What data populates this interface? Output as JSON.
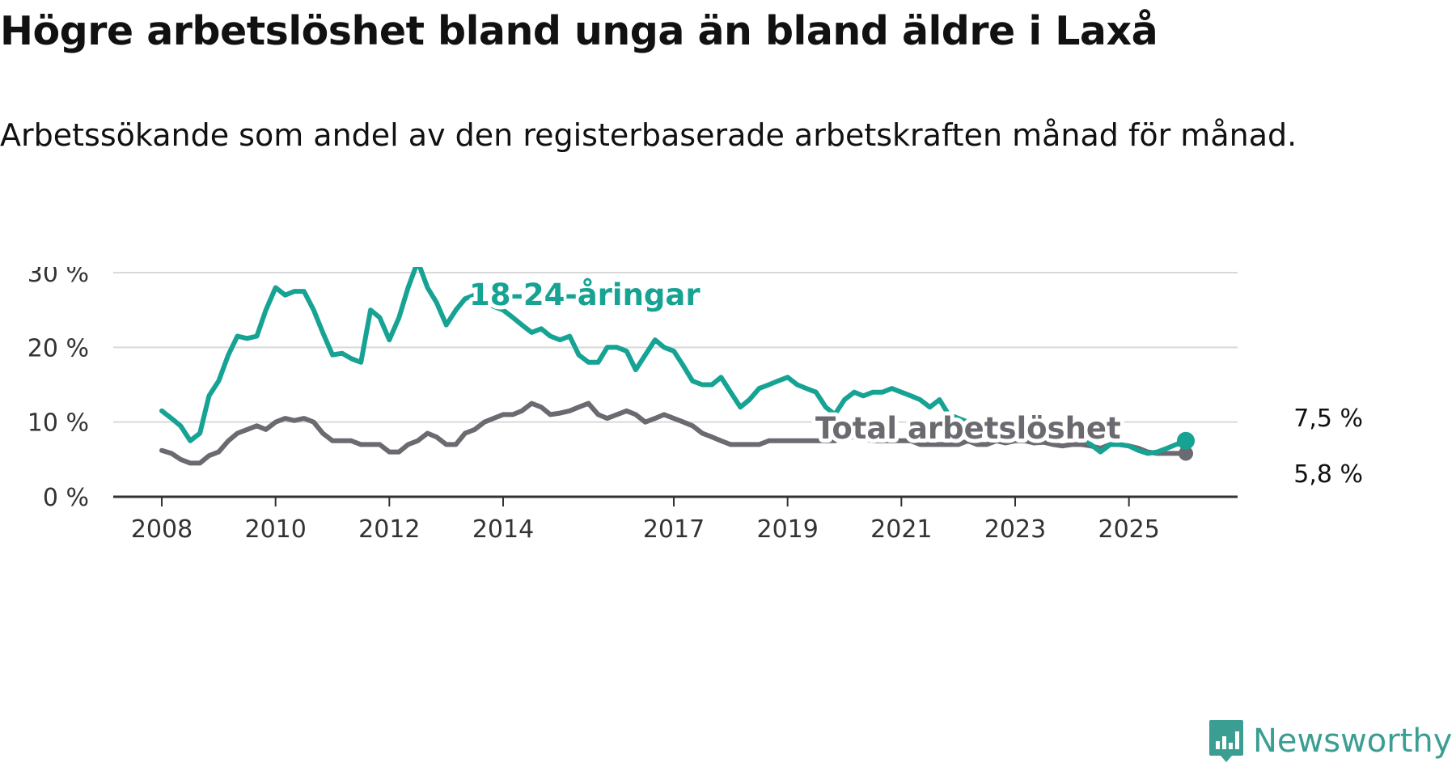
{
  "title": "Högre arbetslöshet bland unga än bland äldre i Laxå",
  "subtitle": "Arbetssökande som andel av den registerbaserade arbetskraften månad för månad.",
  "brand": {
    "name": "Newsworthy",
    "color": "#3a9e92"
  },
  "chart_data": {
    "type": "line",
    "ylim": [
      0,
      30
    ],
    "yticks": [
      0,
      10,
      20,
      30
    ],
    "ytick_labels": [
      "0 %",
      "10 %",
      "20 %",
      "30 %"
    ],
    "xlim": [
      2008.0,
      2026.3
    ],
    "xticks": [
      2008,
      2010,
      2012,
      2014,
      2017,
      2019,
      2021,
      2023,
      2025
    ],
    "xtick_labels": [
      "2008",
      "2010",
      "2012",
      "2014",
      "2017",
      "2019",
      "2021",
      "2023",
      "2025"
    ],
    "grid": true,
    "series": [
      {
        "name": "18-24-åringar",
        "color": "#16a394",
        "label_position": "top-left",
        "end_label": "7,5 %",
        "points": [
          [
            2008.0,
            11.5
          ],
          [
            2008.17,
            10.5
          ],
          [
            2008.33,
            9.5
          ],
          [
            2008.5,
            7.5
          ],
          [
            2008.67,
            8.5
          ],
          [
            2008.83,
            13.5
          ],
          [
            2009.0,
            15.5
          ],
          [
            2009.17,
            19
          ],
          [
            2009.33,
            21.5
          ],
          [
            2009.5,
            21.2
          ],
          [
            2009.67,
            21.5
          ],
          [
            2009.83,
            25
          ],
          [
            2010.0,
            28
          ],
          [
            2010.17,
            27
          ],
          [
            2010.33,
            27.5
          ],
          [
            2010.5,
            27.5
          ],
          [
            2010.67,
            25
          ],
          [
            2010.83,
            22
          ],
          [
            2011.0,
            19
          ],
          [
            2011.17,
            19.2
          ],
          [
            2011.33,
            18.5
          ],
          [
            2011.5,
            18
          ],
          [
            2011.67,
            25
          ],
          [
            2011.83,
            24
          ],
          [
            2012.0,
            21
          ],
          [
            2012.17,
            24
          ],
          [
            2012.33,
            28
          ],
          [
            2012.5,
            31.5
          ],
          [
            2012.67,
            28
          ],
          [
            2012.83,
            26
          ],
          [
            2013.0,
            23
          ],
          [
            2013.17,
            25
          ],
          [
            2013.33,
            26.5
          ],
          [
            2013.5,
            27
          ],
          [
            2013.67,
            26
          ],
          [
            2013.83,
            25.5
          ],
          [
            2014.0,
            25
          ],
          [
            2014.17,
            24
          ],
          [
            2014.33,
            23
          ],
          [
            2014.5,
            22
          ],
          [
            2014.67,
            22.5
          ],
          [
            2014.83,
            21.5
          ],
          [
            2015.0,
            21
          ],
          [
            2015.17,
            21.5
          ],
          [
            2015.33,
            19
          ],
          [
            2015.5,
            18
          ],
          [
            2015.67,
            18
          ],
          [
            2015.83,
            20
          ],
          [
            2016.0,
            20
          ],
          [
            2016.17,
            19.5
          ],
          [
            2016.33,
            17
          ],
          [
            2016.5,
            19
          ],
          [
            2016.67,
            21
          ],
          [
            2016.83,
            20
          ],
          [
            2017.0,
            19.5
          ],
          [
            2017.17,
            17.5
          ],
          [
            2017.33,
            15.5
          ],
          [
            2017.5,
            15
          ],
          [
            2017.67,
            15
          ],
          [
            2017.83,
            16
          ],
          [
            2018.0,
            14
          ],
          [
            2018.17,
            12
          ],
          [
            2018.33,
            13
          ],
          [
            2018.5,
            14.5
          ],
          [
            2018.67,
            15
          ],
          [
            2018.83,
            15.5
          ],
          [
            2019.0,
            16
          ],
          [
            2019.17,
            15
          ],
          [
            2019.33,
            14.5
          ],
          [
            2019.5,
            14
          ],
          [
            2019.67,
            12
          ],
          [
            2019.83,
            11
          ],
          [
            2020.0,
            13
          ],
          [
            2020.17,
            14
          ],
          [
            2020.33,
            13.5
          ],
          [
            2020.5,
            14
          ],
          [
            2020.67,
            14
          ],
          [
            2020.83,
            14.5
          ],
          [
            2021.0,
            14
          ],
          [
            2021.17,
            13.5
          ],
          [
            2021.33,
            13
          ],
          [
            2021.5,
            12
          ],
          [
            2021.67,
            13
          ],
          [
            2021.83,
            11
          ],
          [
            2022.0,
            10.5
          ],
          [
            2022.17,
            10
          ],
          [
            2022.33,
            10
          ],
          [
            2022.5,
            9.5
          ],
          [
            2022.67,
            8.5
          ],
          [
            2022.83,
            8
          ],
          [
            2023.0,
            9
          ],
          [
            2023.17,
            10
          ],
          [
            2023.33,
            9.5
          ],
          [
            2023.5,
            10
          ],
          [
            2023.67,
            9
          ],
          [
            2023.83,
            8.5
          ],
          [
            2024.0,
            8.5
          ],
          [
            2024.17,
            8
          ],
          [
            2024.33,
            7
          ],
          [
            2024.5,
            6
          ],
          [
            2024.67,
            7
          ],
          [
            2024.83,
            7
          ],
          [
            2025.0,
            6.8
          ],
          [
            2025.17,
            6.2
          ],
          [
            2025.33,
            5.8
          ],
          [
            2025.5,
            6
          ],
          [
            2025.67,
            6.5
          ],
          [
            2025.83,
            7
          ],
          [
            2026.0,
            7.5
          ]
        ]
      },
      {
        "name": "Total arbetslöshet",
        "color": "#6b6a70",
        "label_position": "middle-right",
        "end_label": "5,8 %",
        "points": [
          [
            2008.0,
            6.2
          ],
          [
            2008.17,
            5.8
          ],
          [
            2008.33,
            5
          ],
          [
            2008.5,
            4.5
          ],
          [
            2008.67,
            4.5
          ],
          [
            2008.83,
            5.5
          ],
          [
            2009.0,
            6
          ],
          [
            2009.17,
            7.5
          ],
          [
            2009.33,
            8.5
          ],
          [
            2009.5,
            9
          ],
          [
            2009.67,
            9.5
          ],
          [
            2009.83,
            9
          ],
          [
            2010.0,
            10
          ],
          [
            2010.17,
            10.5
          ],
          [
            2010.33,
            10.2
          ],
          [
            2010.5,
            10.5
          ],
          [
            2010.67,
            10
          ],
          [
            2010.83,
            8.5
          ],
          [
            2011.0,
            7.5
          ],
          [
            2011.17,
            7.5
          ],
          [
            2011.33,
            7.5
          ],
          [
            2011.5,
            7
          ],
          [
            2011.67,
            7
          ],
          [
            2011.83,
            7
          ],
          [
            2012.0,
            6
          ],
          [
            2012.17,
            6
          ],
          [
            2012.33,
            7
          ],
          [
            2012.5,
            7.5
          ],
          [
            2012.67,
            8.5
          ],
          [
            2012.83,
            8
          ],
          [
            2013.0,
            7
          ],
          [
            2013.17,
            7
          ],
          [
            2013.33,
            8.5
          ],
          [
            2013.5,
            9
          ],
          [
            2013.67,
            10
          ],
          [
            2013.83,
            10.5
          ],
          [
            2014.0,
            11
          ],
          [
            2014.17,
            11
          ],
          [
            2014.33,
            11.5
          ],
          [
            2014.5,
            12.5
          ],
          [
            2014.67,
            12
          ],
          [
            2014.83,
            11
          ],
          [
            2015.0,
            11.2
          ],
          [
            2015.17,
            11.5
          ],
          [
            2015.33,
            12
          ],
          [
            2015.5,
            12.5
          ],
          [
            2015.67,
            11
          ],
          [
            2015.83,
            10.5
          ],
          [
            2016.0,
            11
          ],
          [
            2016.17,
            11.5
          ],
          [
            2016.33,
            11
          ],
          [
            2016.5,
            10
          ],
          [
            2016.67,
            10.5
          ],
          [
            2016.83,
            11
          ],
          [
            2017.0,
            10.5
          ],
          [
            2017.17,
            10
          ],
          [
            2017.33,
            9.5
          ],
          [
            2017.5,
            8.5
          ],
          [
            2017.67,
            8
          ],
          [
            2017.83,
            7.5
          ],
          [
            2018.0,
            7
          ],
          [
            2018.17,
            7
          ],
          [
            2018.33,
            7
          ],
          [
            2018.5,
            7
          ],
          [
            2018.67,
            7.5
          ],
          [
            2018.83,
            7.5
          ],
          [
            2019.0,
            7.5
          ],
          [
            2019.17,
            7.5
          ],
          [
            2019.33,
            7.5
          ],
          [
            2019.5,
            7.5
          ],
          [
            2019.67,
            7.5
          ],
          [
            2019.83,
            7.5
          ],
          [
            2020.0,
            8
          ],
          [
            2020.17,
            8
          ],
          [
            2020.33,
            7.8
          ],
          [
            2020.5,
            7.5
          ],
          [
            2020.67,
            7.5
          ],
          [
            2020.83,
            7.5
          ],
          [
            2021.0,
            7.5
          ],
          [
            2021.17,
            7.5
          ],
          [
            2021.33,
            7
          ],
          [
            2021.5,
            7
          ],
          [
            2021.67,
            7
          ],
          [
            2021.83,
            7
          ],
          [
            2022.0,
            7
          ],
          [
            2022.17,
            7.5
          ],
          [
            2022.33,
            7
          ],
          [
            2022.5,
            7
          ],
          [
            2022.67,
            7.5
          ],
          [
            2022.83,
            7.2
          ],
          [
            2023.0,
            7.5
          ],
          [
            2023.17,
            7.5
          ],
          [
            2023.33,
            7.2
          ],
          [
            2023.5,
            7.3
          ],
          [
            2023.67,
            7
          ],
          [
            2023.83,
            6.8
          ],
          [
            2024.0,
            7
          ],
          [
            2024.17,
            7
          ],
          [
            2024.33,
            6.8
          ],
          [
            2024.5,
            6.5
          ],
          [
            2024.67,
            7
          ],
          [
            2024.83,
            7
          ],
          [
            2025.0,
            6.8
          ],
          [
            2025.17,
            6.5
          ],
          [
            2025.33,
            6
          ],
          [
            2025.5,
            5.8
          ],
          [
            2025.67,
            5.8
          ],
          [
            2025.83,
            5.8
          ],
          [
            2026.0,
            5.8
          ]
        ]
      }
    ]
  }
}
